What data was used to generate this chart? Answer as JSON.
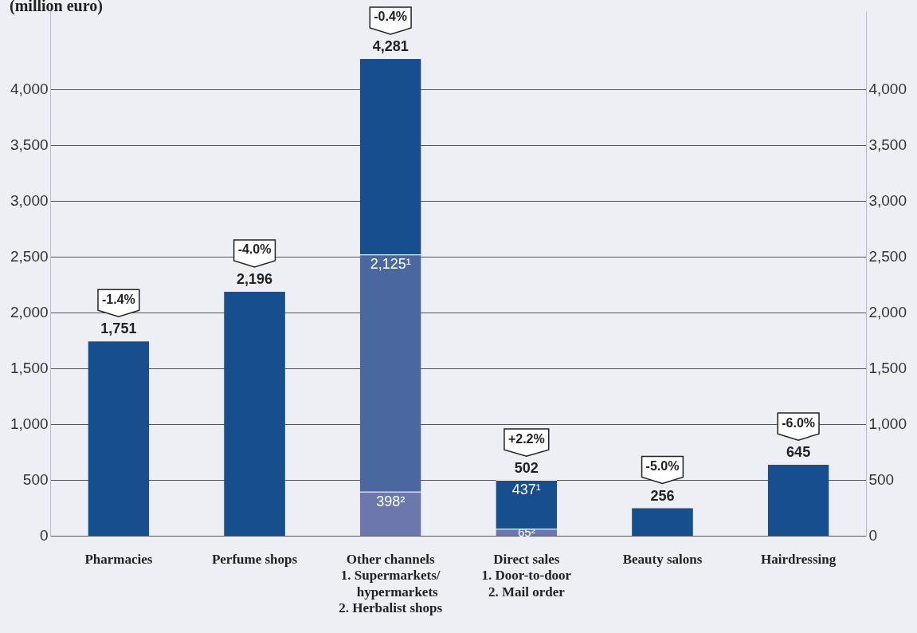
{
  "chart_data": {
    "type": "bar",
    "title": "(million euro)",
    "stacked": true,
    "categories": [
      "Pharmacies",
      "Perfume shops",
      "Other channels\n1. Supermarkets/\n    hypermarkets\n2. Herbalist shops",
      "Direct sales\n1. Door-to-door\n2. Mail order",
      "Beauty salons",
      "Hairdressing"
    ],
    "series": [
      {
        "color": "#6c78ad",
        "values": [
          null,
          null,
          398,
          65,
          null,
          null
        ],
        "value_labels": [
          null,
          null,
          "398²",
          "65²",
          null,
          null
        ]
      },
      {
        "colors": [
          "#174f8e",
          "#174f8e",
          "#4b67a0",
          "#174f8e",
          "#174f8e",
          "#174f8e"
        ],
        "values": [
          1751,
          2196,
          2125,
          437,
          256,
          645
        ],
        "value_labels": [
          null,
          null,
          "2,125¹",
          "437¹",
          null,
          null
        ]
      },
      {
        "color": "#174f8e",
        "values": [
          null,
          null,
          1758,
          null,
          null,
          null
        ]
      }
    ],
    "totals": [
      "1,751",
      "2,196",
      "4,281",
      "502",
      "256",
      "645"
    ],
    "annotations": [
      {
        "text": "-1.4%",
        "x": "Pharmacies",
        "y": 1751
      },
      {
        "text": "-4.0%",
        "x": "Perfume shops",
        "y": 2196
      },
      {
        "text": "-0.4%",
        "x": "Other channels\n1. Supermarkets/\n    hypermarkets\n2. Herbalist shops",
        "y": 4281
      },
      {
        "text": "+2.2%",
        "x": "Direct sales\n1. Door-to-door\n2. Mail order",
        "y": 502
      },
      {
        "text": "-5.0%",
        "x": "Beauty salons",
        "y": 256
      },
      {
        "text": "-6.0%",
        "x": "Hairdressing",
        "y": 645
      }
    ],
    "ylim": [
      0,
      4700
    ],
    "yticks": [
      0,
      500,
      {
        "value": 1000,
        "label": "1,000"
      },
      {
        "value": 1500,
        "label": "1,500"
      },
      {
        "value": 2000,
        "label": "2,000"
      },
      {
        "value": 2500,
        "label": "2,500"
      },
      {
        "value": 3000,
        "label": "3,000"
      },
      {
        "value": 3500,
        "label": "3,500"
      },
      {
        "value": 4000,
        "label": "4,000"
      }
    ],
    "y2lim": [
      0,
      4700
    ],
    "y2ticks": [
      0,
      500,
      {
        "value": 1000,
        "label": "1,000"
      },
      {
        "value": 1500,
        "label": "1,500"
      },
      {
        "value": 2000,
        "label": "2,000"
      },
      {
        "value": 2500,
        "label": "2,500"
      },
      {
        "value": 3000,
        "label": "3,000"
      },
      {
        "value": 3500,
        "label": "3,500"
      },
      {
        "value": 4000,
        "label": "4,000"
      }
    ],
    "grid": "y",
    "legend": false
  }
}
